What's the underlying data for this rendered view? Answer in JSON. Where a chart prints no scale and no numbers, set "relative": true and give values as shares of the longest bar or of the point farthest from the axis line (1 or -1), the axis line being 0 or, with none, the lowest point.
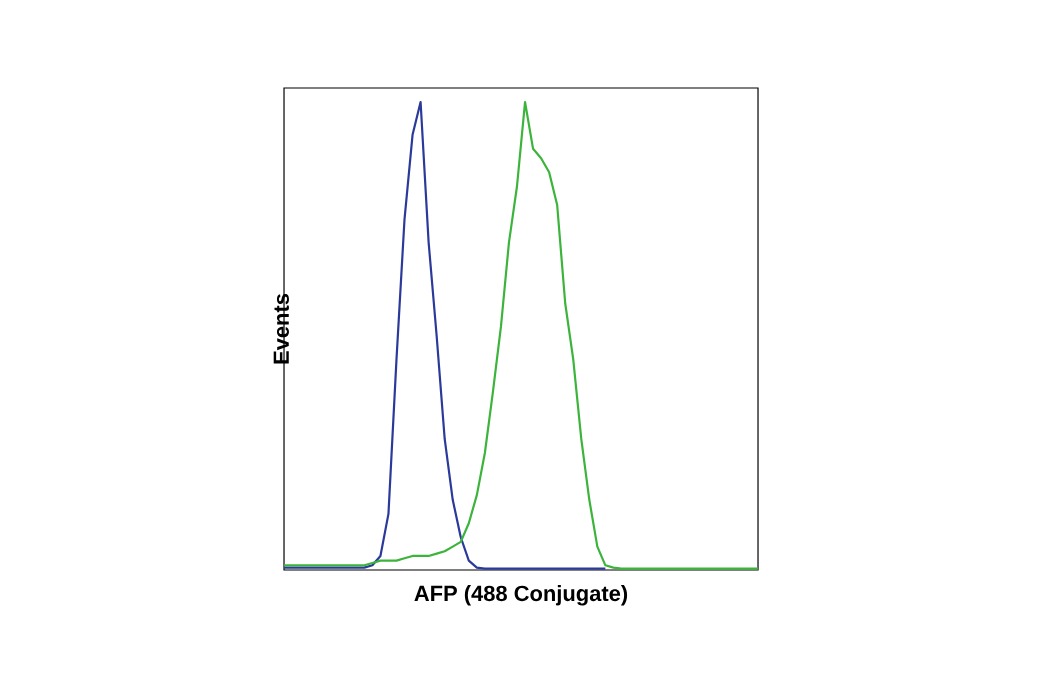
{
  "chart_data": {
    "type": "line",
    "relative": true,
    "xlabel": "AFP (488 Conjugate)",
    "ylabel": "Events",
    "categories": [
      null,
      null,
      null,
      null,
      null,
      null,
      null,
      null,
      null,
      null,
      null,
      null,
      null,
      null,
      null,
      null,
      null,
      null,
      null,
      null,
      null,
      null,
      null,
      null,
      null,
      null,
      null,
      null,
      null,
      null,
      null,
      null,
      null,
      null,
      null,
      null,
      null,
      null,
      null,
      null,
      null,
      null,
      null,
      null,
      null,
      null,
      null,
      null,
      null,
      null,
      null,
      null,
      null,
      null,
      null,
      null,
      null,
      null,
      null,
      null
    ],
    "series": [
      {
        "color": "#2b3a9a",
        "values": [
          0.005,
          0.005,
          0.005,
          0.005,
          0.005,
          0.005,
          0.005,
          0.005,
          0.005,
          0.005,
          0.005,
          0.01,
          0.03,
          0.12,
          0.45,
          0.75,
          0.93,
          1,
          0.7,
          0.5,
          0.28,
          0.15,
          0.07,
          0.02,
          0.005,
          0.003,
          0.003,
          0.003,
          0.003,
          0.003,
          0.003,
          0.003,
          0.003,
          0.003,
          0.003,
          0.003,
          0.003,
          0.003,
          0.003,
          0.003,
          0.003,
          null,
          null,
          null,
          null,
          null,
          null,
          null,
          null,
          null,
          null,
          null,
          null,
          null,
          null,
          null,
          null,
          null,
          null,
          null
        ]
      },
      {
        "color": "#3cb43c",
        "values": [
          0.01,
          0.01,
          0.01,
          0.01,
          0.01,
          0.01,
          0.01,
          0.01,
          0.01,
          0.01,
          0.01,
          0.015,
          0.02,
          0.02,
          0.02,
          0.025,
          0.03,
          0.03,
          0.03,
          0.035,
          0.04,
          0.05,
          0.06,
          0.1,
          0.16,
          0.25,
          0.38,
          0.52,
          0.7,
          0.82,
          1,
          0.9,
          0.88,
          0.85,
          0.78,
          0.57,
          0.45,
          0.28,
          0.15,
          0.05,
          0.01,
          0.005,
          0.003,
          0.003,
          0.003,
          0.003,
          0.003,
          0.003,
          0.003,
          0.003,
          0.003,
          0.003,
          0.003,
          0.003,
          0.003,
          0.003,
          0.003,
          0.003,
          0.003,
          0.003
        ]
      }
    ]
  }
}
